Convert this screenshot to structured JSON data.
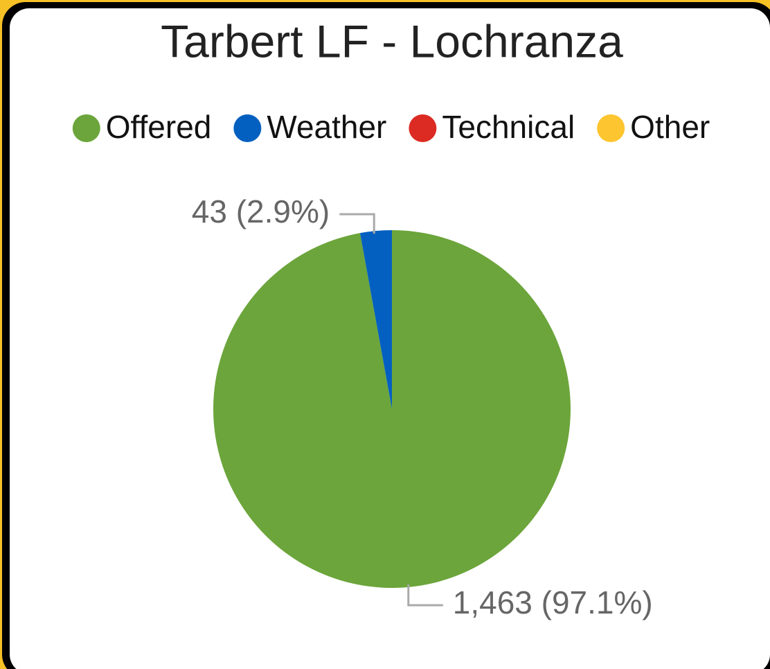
{
  "chart_data": {
    "type": "pie",
    "title": "Tarbert LF - Lochranza",
    "categories": [
      "Offered",
      "Weather",
      "Technical",
      "Other"
    ],
    "values": [
      1463,
      43,
      0,
      0
    ],
    "value_labels": [
      "1,463 (97.1%)",
      "43 (2.9%)",
      null,
      null
    ],
    "colors": [
      "#6ca53b",
      "#0460c0",
      "#dc2b23",
      "#fdc52f"
    ],
    "legend": "top"
  }
}
